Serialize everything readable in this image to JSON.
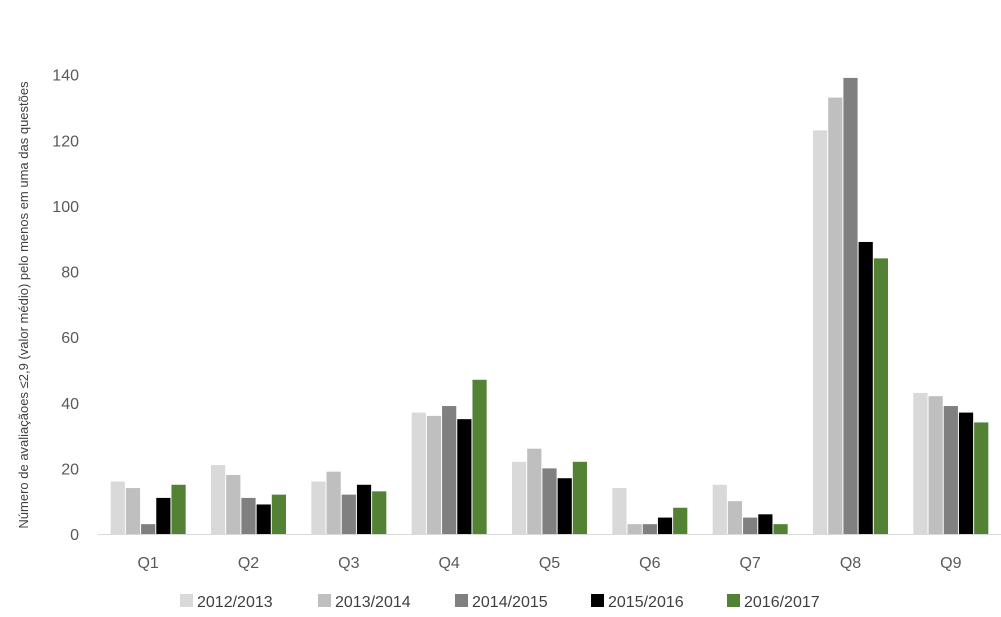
{
  "chart_data": {
    "type": "bar",
    "title": "",
    "xlabel": "",
    "ylabel": "Número de avaliaçãoes ≤2,9 (valor médio) pelo menos em uma das questões",
    "categories": [
      "Q1",
      "Q2",
      "Q3",
      "Q4",
      "Q5",
      "Q6",
      "Q7",
      "Q8",
      "Q9"
    ],
    "ylim": [
      0,
      160
    ],
    "yticks": [
      0,
      20,
      40,
      60,
      80,
      100,
      120,
      140
    ],
    "grid": false,
    "legend_position": "bottom",
    "series": [
      {
        "name": "2012/2013",
        "color": "#d9d9d9",
        "values": [
          16,
          21,
          16,
          37,
          22,
          14,
          15,
          123,
          43
        ]
      },
      {
        "name": "2013/2014",
        "color": "#bfbfbf",
        "values": [
          14,
          18,
          19,
          36,
          26,
          3,
          10,
          133,
          42
        ]
      },
      {
        "name": "2014/2015",
        "color": "#808080",
        "values": [
          3,
          11,
          12,
          39,
          20,
          3,
          5,
          139,
          39
        ]
      },
      {
        "name": "2015/2016",
        "color": "#000000",
        "values": [
          11,
          9,
          15,
          35,
          17,
          5,
          6,
          89,
          37
        ]
      },
      {
        "name": "2016/2017",
        "color": "#548235",
        "values": [
          15,
          12,
          13,
          47,
          22,
          8,
          3,
          84,
          34
        ]
      }
    ]
  }
}
